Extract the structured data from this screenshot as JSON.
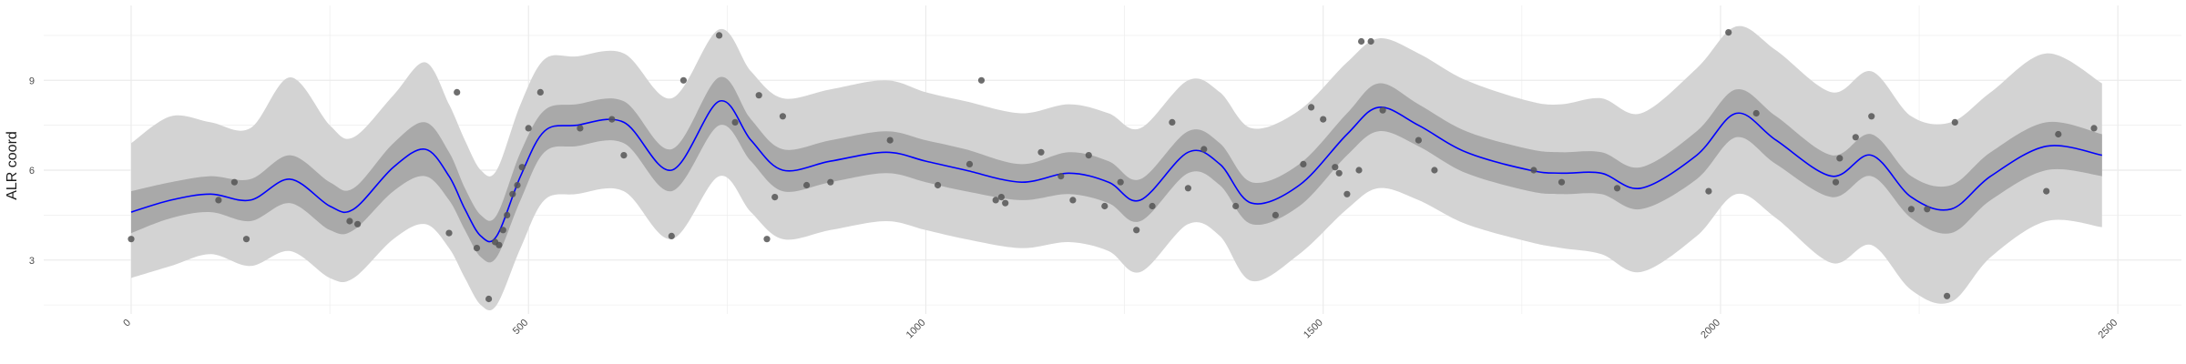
{
  "chart_data": {
    "type": "line",
    "title": "",
    "xlabel": "",
    "ylabel": "ALR coord",
    "xlim": [
      -110,
      2580
    ],
    "ylim": [
      1.2,
      11.5
    ],
    "x_ticks": [
      0,
      500,
      1000,
      1500,
      2000,
      2500
    ],
    "y_ticks": [
      3,
      6,
      9
    ],
    "grid": true,
    "legend": "none",
    "colors": {
      "mean_line": "#0000ff",
      "inner_band": "#a9a9a9",
      "outer_band": "#d3d3d3",
      "points": "#555555",
      "grid": "#ebebeb"
    },
    "series": [
      {
        "kind": "mean",
        "x": [
          0,
          50,
          100,
          150,
          200,
          250,
          280,
          330,
          370,
          400,
          420,
          440,
          460,
          490,
          520,
          560,
          620,
          680,
          740,
          780,
          820,
          880,
          950,
          1000,
          1050,
          1120,
          1180,
          1230,
          1270,
          1330,
          1370,
          1410,
          1470,
          1530,
          1570,
          1620,
          1680,
          1760,
          1800,
          1850,
          1900,
          1970,
          2020,
          2070,
          2140,
          2190,
          2240,
          2290,
          2340,
          2410,
          2480
        ],
        "y": [
          4.6,
          5.0,
          5.2,
          5.0,
          5.7,
          4.8,
          4.7,
          6.1,
          6.7,
          5.8,
          4.7,
          3.8,
          3.8,
          5.8,
          7.3,
          7.5,
          7.6,
          6.0,
          8.3,
          7.0,
          6.0,
          6.3,
          6.6,
          6.3,
          6.0,
          5.6,
          5.9,
          5.6,
          5.0,
          6.6,
          6.2,
          4.9,
          5.5,
          7.2,
          8.1,
          7.5,
          6.6,
          6.0,
          5.9,
          5.9,
          5.4,
          6.5,
          7.9,
          7.0,
          5.8,
          6.5,
          5.1,
          4.7,
          5.8,
          6.8,
          6.5
        ]
      },
      {
        "kind": "inner_band",
        "x": [
          0,
          50,
          100,
          150,
          200,
          250,
          280,
          330,
          370,
          400,
          420,
          440,
          460,
          490,
          520,
          560,
          620,
          680,
          740,
          780,
          820,
          880,
          950,
          1000,
          1050,
          1120,
          1180,
          1230,
          1270,
          1330,
          1370,
          1410,
          1470,
          1530,
          1570,
          1620,
          1680,
          1760,
          1800,
          1850,
          1900,
          1970,
          2020,
          2070,
          2140,
          2190,
          2240,
          2290,
          2340,
          2410,
          2480
        ],
        "lower": [
          3.9,
          4.4,
          4.6,
          4.3,
          4.9,
          4.0,
          4.0,
          5.3,
          5.8,
          5.0,
          4.0,
          3.1,
          3.1,
          5.0,
          6.6,
          6.8,
          6.9,
          5.3,
          7.5,
          6.3,
          5.3,
          5.6,
          5.9,
          5.6,
          5.3,
          5.0,
          5.2,
          4.9,
          4.3,
          5.9,
          5.5,
          4.2,
          4.8,
          6.5,
          7.3,
          6.8,
          5.9,
          5.3,
          5.2,
          5.2,
          4.7,
          5.7,
          7.1,
          6.2,
          5.1,
          5.8,
          4.4,
          3.9,
          5.0,
          6.0,
          5.8
        ],
        "upper": [
          5.3,
          5.6,
          5.8,
          5.7,
          6.5,
          5.6,
          5.4,
          6.9,
          7.6,
          6.6,
          5.4,
          4.5,
          4.5,
          6.6,
          8.0,
          8.2,
          8.3,
          6.7,
          9.1,
          7.7,
          6.7,
          7.0,
          7.3,
          7.0,
          6.7,
          6.2,
          6.6,
          6.3,
          5.7,
          7.3,
          6.9,
          5.6,
          6.2,
          7.9,
          8.9,
          8.2,
          7.3,
          6.7,
          6.6,
          6.6,
          6.1,
          7.3,
          8.7,
          7.8,
          6.5,
          7.2,
          5.8,
          5.5,
          6.6,
          7.6,
          7.2
        ]
      },
      {
        "kind": "outer_band",
        "x": [
          0,
          50,
          100,
          150,
          200,
          250,
          280,
          330,
          370,
          400,
          420,
          440,
          460,
          490,
          520,
          560,
          620,
          680,
          740,
          780,
          820,
          880,
          950,
          1000,
          1050,
          1120,
          1180,
          1230,
          1270,
          1330,
          1370,
          1410,
          1470,
          1530,
          1570,
          1620,
          1680,
          1760,
          1800,
          1850,
          1900,
          1970,
          2020,
          2070,
          2140,
          2190,
          2240,
          2290,
          2340,
          2410,
          2480
        ],
        "lower": [
          2.4,
          2.8,
          3.2,
          2.8,
          3.3,
          2.4,
          2.4,
          3.7,
          4.2,
          3.4,
          2.4,
          1.5,
          1.5,
          3.4,
          5.0,
          5.2,
          5.3,
          3.7,
          5.8,
          4.6,
          3.7,
          4.0,
          4.3,
          4.0,
          3.7,
          3.4,
          3.6,
          3.3,
          2.6,
          4.2,
          3.8,
          2.3,
          3.2,
          4.7,
          5.4,
          5.0,
          4.2,
          3.6,
          3.4,
          3.2,
          2.6,
          3.8,
          5.2,
          4.4,
          2.9,
          3.5,
          2.0,
          1.6,
          3.1,
          4.3,
          4.1
        ],
        "upper": [
          6.9,
          7.8,
          7.6,
          7.4,
          9.1,
          7.5,
          7.1,
          8.5,
          9.6,
          8.2,
          7.0,
          6.0,
          6.0,
          8.2,
          9.7,
          9.8,
          9.9,
          8.4,
          10.7,
          9.3,
          8.4,
          8.7,
          9.0,
          8.6,
          8.3,
          7.9,
          8.2,
          7.9,
          7.4,
          9.0,
          8.6,
          7.4,
          8.0,
          9.6,
          10.4,
          9.9,
          9.0,
          8.3,
          8.2,
          8.4,
          7.9,
          9.4,
          10.8,
          10.0,
          8.6,
          9.3,
          7.8,
          7.6,
          8.6,
          9.9,
          8.9
        ]
      },
      {
        "kind": "points",
        "x": [
          0,
          110,
          130,
          145,
          275,
          285,
          400,
          410,
          435,
          450,
          458,
          463,
          468,
          473,
          480,
          486,
          492,
          500,
          515,
          565,
          605,
          620,
          680,
          695,
          740,
          760,
          790,
          800,
          810,
          820,
          850,
          880,
          955,
          1015,
          1055,
          1070,
          1088,
          1095,
          1100,
          1145,
          1170,
          1185,
          1205,
          1225,
          1245,
          1265,
          1285,
          1310,
          1330,
          1350,
          1390,
          1440,
          1475,
          1485,
          1500,
          1515,
          1520,
          1530,
          1545,
          1548,
          1560,
          1575,
          1620,
          1640,
          1765,
          1800,
          1870,
          1985,
          2010,
          2045,
          2145,
          2150,
          2170,
          2190,
          2240,
          2260,
          2285,
          2295,
          2410,
          2425,
          2470
        ],
        "y": [
          3.7,
          5.0,
          5.6,
          3.7,
          4.3,
          4.2,
          3.9,
          8.6,
          3.4,
          1.7,
          3.6,
          3.5,
          4.0,
          4.5,
          5.2,
          5.5,
          6.1,
          7.4,
          8.6,
          7.4,
          7.7,
          6.5,
          3.8,
          9.0,
          10.5,
          7.6,
          8.5,
          3.7,
          5.1,
          7.8,
          5.5,
          5.6,
          7.0,
          5.5,
          6.2,
          9.0,
          5.0,
          5.1,
          4.9,
          6.6,
          5.8,
          5.0,
          6.5,
          4.8,
          5.6,
          4.0,
          4.8,
          7.6,
          5.4,
          6.7,
          4.8,
          4.5,
          6.2,
          8.1,
          7.7,
          6.1,
          5.9,
          5.2,
          6.0,
          10.3,
          10.3,
          8.0,
          7.0,
          6.0,
          6.0,
          5.6,
          5.4,
          5.3,
          10.6,
          7.9,
          5.6,
          6.4,
          7.1,
          7.8,
          4.7,
          4.7,
          1.8,
          7.6,
          5.3,
          7.2,
          7.4
        ]
      }
    ]
  }
}
